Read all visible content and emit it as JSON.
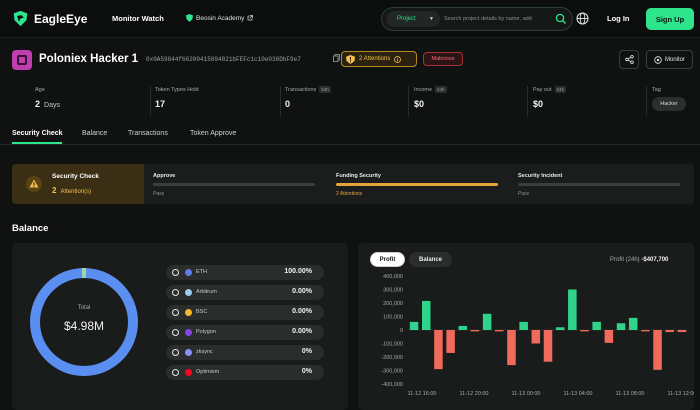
{
  "nav": {
    "logo_text": "EagleEye",
    "monitor_watch": "Monitor Watch",
    "academy": "Beosin Academy",
    "search_select": "Project",
    "search_placeholder": "Search project details by name, add",
    "login": "Log In",
    "signup": "Sign Up"
  },
  "address": {
    "name": "Poloniex Hacker 1",
    "hash": "0x0A59844f66200415894821bFEFc1c10e036DbF9e7",
    "attention_badge": "2 Attentions",
    "malicious_tag": "Malicious",
    "monitor_button": "Monitor"
  },
  "stats": {
    "age_label": "Age",
    "age_value": "2",
    "age_unit": "Days",
    "token_types_label": "Token Types Hold",
    "token_types_value": "17",
    "transactions_label": "Transactions",
    "transactions_badge": "24h",
    "transactions_value": "0",
    "income_label": "Income",
    "income_badge": "24h",
    "income_value": "$0",
    "payout_label": "Pay out",
    "payout_badge": "24h",
    "payout_value": "$0",
    "tag_label": "Tag",
    "tag_value": "Hacker"
  },
  "tabs": [
    "Security Check",
    "Balance",
    "Transactions",
    "Token Approve"
  ],
  "security": {
    "title": "Security Check",
    "attention_count": "2",
    "attention_label": "Attention(s)",
    "items": [
      {
        "label": "Approve",
        "status": "Pass",
        "color": "#3b403e"
      },
      {
        "label": "Funding Security",
        "status": "2 Attentions",
        "color": "#e6a33a"
      },
      {
        "label": "Security Incident",
        "status": "Pass",
        "color": "#3b403e"
      }
    ]
  },
  "balance": {
    "title": "Balance",
    "total_label": "Total",
    "total_value": "$4.98M",
    "chains": [
      {
        "name": "ETH",
        "pct": "100.00%",
        "color": "#627eea"
      },
      {
        "name": "Arbitrum",
        "pct": "0.00%",
        "color": "#9dcced"
      },
      {
        "name": "BSC",
        "pct": "0.00%",
        "color": "#f3ba2f"
      },
      {
        "name": "Polygon",
        "pct": "0.00%",
        "color": "#8247e5"
      },
      {
        "name": "zksync",
        "pct": "0%",
        "color": "#8c8dfc"
      },
      {
        "name": "Optimism",
        "pct": "0%",
        "color": "#ff0420"
      }
    ]
  },
  "profit": {
    "tab_profit": "Profit",
    "tab_balance": "Balance",
    "label": "Profit (24h)",
    "value": "-$407,700",
    "positive_color": "#2fd48a",
    "negative_color": "#f06b5b"
  },
  "chart_data": {
    "type": "bar",
    "title": "",
    "xlabel": "",
    "ylabel": "",
    "ylim": [
      -400000,
      400000
    ],
    "y_ticks": [
      "400,000",
      "300,000",
      "200,000",
      "100,000",
      "0",
      "-100,000",
      "-200,000",
      "-300,000",
      "-400,000"
    ],
    "x_ticks": [
      "11-12 16:00",
      "11-12 20:00",
      "11-13 00:00",
      "11-13 04:00",
      "11-13 08:00",
      "11-13 12:00"
    ],
    "values": [
      60000,
      215000,
      -290000,
      -170000,
      30000,
      -10000,
      120000,
      -10000,
      -260000,
      60000,
      -100000,
      -235000,
      20000,
      300000,
      -10000,
      60000,
      -95000,
      50000,
      90000,
      -10000,
      -295000,
      -15000,
      -15000
    ]
  }
}
